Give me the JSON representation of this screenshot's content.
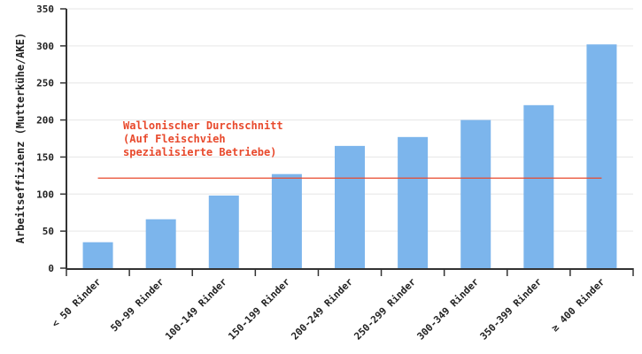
{
  "chart_data": {
    "type": "bar",
    "title": "",
    "xlabel": "",
    "ylabel": "Arbeitseffizienz (Mutterkühe/AKE)",
    "categories": [
      "< 50 Rinder",
      "50-99 Rinder",
      "100-149 Rinder",
      "150-199 Rinder",
      "200-249 Rinder",
      "250-299 Rinder",
      "300-349 Rinder",
      "350-399 Rinder",
      "≥ 400 Rinder"
    ],
    "values": [
      35,
      66,
      98,
      127,
      165,
      177,
      200,
      220,
      302
    ],
    "ylim": [
      0,
      350
    ],
    "yticks": [
      0,
      50,
      100,
      150,
      200,
      250,
      300,
      350
    ],
    "grid": true,
    "bar_color": "#7cb5ec",
    "reference_line": {
      "value": 121.5,
      "color": "#e8492c",
      "label_lines": [
        "Wallonischer Durchschnitt",
        "(Auf Fleischvieh",
        "spezialisierte Betriebe)"
      ]
    }
  }
}
